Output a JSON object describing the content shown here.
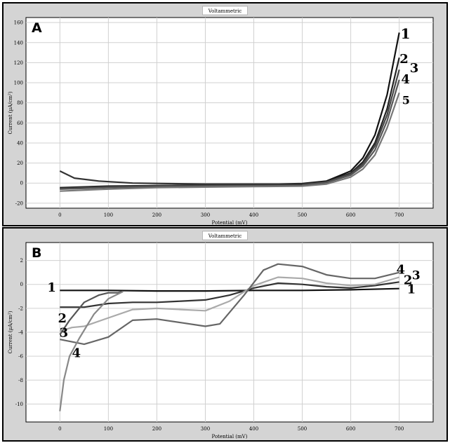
{
  "chart_data": [
    {
      "type": "line",
      "panel_label": "A",
      "title": "Voltammetric",
      "xlabel": "Potential (mV)",
      "ylabel": "Current (µA/cm²)",
      "xlim": [
        -70,
        770
      ],
      "ylim": [
        -25,
        165
      ],
      "xticks": [
        0,
        100,
        200,
        300,
        400,
        500,
        600,
        700
      ],
      "yticks": [
        -20,
        0,
        20,
        40,
        60,
        80,
        100,
        120,
        140,
        160
      ],
      "grid": true,
      "series": [
        {
          "name": "1",
          "color": "#111111",
          "x": [
            0,
            100,
            200,
            300,
            400,
            500,
            550,
            600,
            625,
            650,
            675,
            700
          ],
          "y": [
            -5,
            -3.5,
            -2.5,
            -2,
            -1.5,
            -0.5,
            2,
            12,
            25,
            48,
            88,
            150
          ]
        },
        {
          "name": "2",
          "color": "#222222",
          "x": [
            0,
            100,
            200,
            300,
            400,
            500,
            550,
            600,
            625,
            650,
            675,
            700
          ],
          "y": [
            -4.5,
            -3,
            -2.5,
            -2,
            -1.5,
            -1,
            1.5,
            10,
            21,
            40,
            74,
            125
          ]
        },
        {
          "name": "3",
          "color": "#444444",
          "x": [
            0,
            100,
            200,
            300,
            400,
            500,
            550,
            600,
            625,
            650,
            675,
            700
          ],
          "y": [
            -5.5,
            -4,
            -3,
            -2.5,
            -2,
            -1.5,
            1,
            9,
            19,
            37,
            68,
            113
          ]
        },
        {
          "name": "4",
          "color": "#555555",
          "x": [
            0,
            100,
            200,
            300,
            400,
            500,
            550,
            600,
            625,
            650,
            675,
            700
          ],
          "y": [
            -6,
            -4.5,
            -3.5,
            -3,
            -2.5,
            -2,
            0.5,
            8,
            17,
            33,
            62,
            103
          ]
        },
        {
          "name": "5",
          "color": "#777777",
          "x": [
            0,
            100,
            200,
            300,
            400,
            500,
            550,
            600,
            625,
            650,
            675,
            700
          ],
          "y": [
            -8,
            -6,
            -4.5,
            -4,
            -3.5,
            -3,
            -1,
            6,
            14,
            28,
            55,
            90
          ]
        },
        {
          "name": "",
          "color": "#333333",
          "x": [
            0,
            30,
            80,
            150,
            300,
            500
          ],
          "y": [
            12,
            5,
            2,
            0,
            -1,
            -1
          ]
        }
      ],
      "labels": [
        {
          "text": "1",
          "x": 713,
          "y": 148,
          "size": 20
        },
        {
          "text": "2",
          "x": 710,
          "y": 123,
          "size": 18
        },
        {
          "text": "3",
          "x": 731,
          "y": 114,
          "size": 18
        },
        {
          "text": "4",
          "x": 713,
          "y": 103,
          "size": 18
        },
        {
          "text": "5",
          "x": 714,
          "y": 82,
          "size": 16
        }
      ]
    },
    {
      "type": "line",
      "panel_label": "B",
      "title": "Voltammetric",
      "xlabel": "Potential (mV)",
      "ylabel": "Current (µA/cm²)",
      "xlim": [
        -70,
        770
      ],
      "ylim": [
        -11.5,
        3.5
      ],
      "xticks": [
        0,
        100,
        200,
        300,
        400,
        500,
        600,
        700
      ],
      "yticks": [
        -10,
        -8,
        -6,
        -4,
        -2,
        0,
        2
      ],
      "grid": true,
      "series": [
        {
          "name": "1",
          "color": "#111111",
          "x": [
            0,
            100,
            200,
            300,
            400,
            500,
            600,
            700
          ],
          "y": [
            -0.5,
            -0.5,
            -0.55,
            -0.55,
            -0.5,
            -0.5,
            -0.45,
            -0.35
          ]
        },
        {
          "name": "2",
          "color": "#333333",
          "x": [
            0,
            50,
            100,
            150,
            200,
            250,
            300,
            350,
            400,
            450,
            500,
            550,
            600,
            650,
            700
          ],
          "y": [
            -1.9,
            -1.9,
            -1.6,
            -1.5,
            -1.5,
            -1.4,
            -1.3,
            -0.9,
            -0.3,
            0.1,
            0,
            -0.2,
            -0.3,
            -0.1,
            0.2
          ]
        },
        {
          "name": "3",
          "color": "#aaaaaa",
          "x": [
            0,
            25,
            50,
            100,
            150,
            200,
            250,
            300,
            350,
            400,
            450,
            500,
            550,
            600,
            650,
            700
          ],
          "y": [
            -3.9,
            -3.6,
            -3.5,
            -2.8,
            -2.1,
            -2,
            -2.1,
            -2.2,
            -1.4,
            -0.1,
            0.6,
            0.5,
            0.1,
            -0.1,
            0,
            0.6
          ]
        },
        {
          "name": "4",
          "color": "#666666",
          "x": [
            0,
            50,
            100,
            150,
            200,
            250,
            300,
            330,
            380,
            420,
            450,
            500,
            550,
            600,
            650,
            700
          ],
          "y": [
            -4.6,
            -5,
            -4.4,
            -3,
            -2.9,
            -3.2,
            -3.5,
            -3.3,
            -0.9,
            1.2,
            1.7,
            1.5,
            0.8,
            0.5,
            0.5,
            1
          ]
        },
        {
          "name": "",
          "color": "#555555",
          "x": [
            0,
            20,
            50,
            80,
            100,
            120,
            130
          ],
          "y": [
            -4.2,
            -3,
            -1.5,
            -0.9,
            -0.7,
            -0.7,
            -0.6
          ]
        },
        {
          "name": "",
          "color": "#888888",
          "x": [
            0,
            8,
            20,
            40,
            70,
            100,
            130
          ],
          "y": [
            -10.6,
            -8,
            -6,
            -4.5,
            -2.5,
            -1.2,
            -0.6
          ]
        }
      ],
      "labels": [
        {
          "text": "1",
          "x": -17,
          "y": -0.3,
          "size": 18
        },
        {
          "text": "2",
          "x": 5,
          "y": -2.9,
          "size": 18
        },
        {
          "text": "3",
          "x": 8,
          "y": -4.1,
          "size": 18
        },
        {
          "text": "4",
          "x": 34,
          "y": -5.8,
          "size": 18
        },
        {
          "text": "1",
          "x": 725,
          "y": -0.45,
          "size": 18
        },
        {
          "text": "2",
          "x": 718,
          "y": 0.3,
          "size": 18
        },
        {
          "text": "3",
          "x": 735,
          "y": 0.7,
          "size": 17
        },
        {
          "text": "4",
          "x": 703,
          "y": 1.2,
          "size": 18
        }
      ]
    }
  ]
}
